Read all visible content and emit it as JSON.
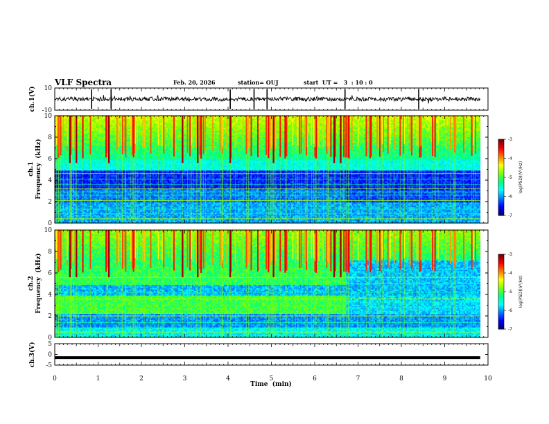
{
  "header": {
    "title": "VLF Spectra",
    "date": "Feb. 20, 2026",
    "station": "station= OUJ",
    "start_ut": "start  UT =   3  : 10 : 0"
  },
  "colors": {
    "accent": "#000000",
    "colormap": [
      "#00007f",
      "#0000ff",
      "#0080ff",
      "#00ffff",
      "#00ff80",
      "#80ff00",
      "#ffff00",
      "#ff8000",
      "#ff0000",
      "#7f0000"
    ]
  },
  "chart_data": [
    {
      "type": "line",
      "panel": "ch1-waveform",
      "ylabel": "ch.1(V)",
      "ylim": [
        -10,
        10
      ],
      "yticks": [
        {
          "v": 10,
          "label": "10"
        },
        {
          "v": -10,
          "label": "-10"
        }
      ],
      "baseline": 0,
      "spikes_at_min": [
        1.3,
        4.05,
        4.6,
        4.9,
        6.7,
        8.4,
        0.85
      ]
    },
    {
      "type": "heatmap",
      "panel": "ch1-spectrogram",
      "ylabel": "ch.1\nFrequency (kHz)",
      "ylabel_lines": [
        "ch.1",
        "Frequency  (kHz)"
      ],
      "ylim": [
        0,
        10
      ],
      "yticks": [
        {
          "v": 0,
          "label": "0"
        },
        {
          "v": 2,
          "label": "2"
        },
        {
          "v": 4,
          "label": "4"
        },
        {
          "v": 6,
          "label": "6"
        },
        {
          "v": 8,
          "label": "8"
        },
        {
          "v": 10,
          "label": "10"
        }
      ],
      "colorbar": {
        "label": "log(PSD)(V²/Hz)",
        "range": [
          -7,
          -3
        ],
        "ticks": [
          {
            "v": -3,
            "label": "-3"
          },
          {
            "v": -4,
            "label": "-4"
          },
          {
            "v": -5,
            "label": "-5"
          },
          {
            "v": -6,
            "label": "-6"
          },
          {
            "v": -7,
            "label": "-7"
          }
        ]
      },
      "change_time_min": 6.7
    },
    {
      "type": "heatmap",
      "panel": "ch2-spectrogram",
      "ylabel": "ch.2\nFrequency (kHz)",
      "ylabel_lines": [
        "ch.2",
        "Frequency  (kHz)"
      ],
      "ylim": [
        0,
        10
      ],
      "yticks": [
        {
          "v": 0,
          "label": "0"
        },
        {
          "v": 2,
          "label": "2"
        },
        {
          "v": 4,
          "label": "4"
        },
        {
          "v": 6,
          "label": "6"
        },
        {
          "v": 8,
          "label": "8"
        },
        {
          "v": 10,
          "label": "10"
        }
      ],
      "colorbar": {
        "label": "log(PSD)(V²/Hz)",
        "range": [
          -7,
          -3
        ],
        "ticks": [
          {
            "v": -3,
            "label": "-3"
          },
          {
            "v": -4,
            "label": "-4"
          },
          {
            "v": -5,
            "label": "-5"
          },
          {
            "v": -6,
            "label": "-6"
          },
          {
            "v": -7,
            "label": "-7"
          }
        ]
      },
      "change_time_min": 6.7
    },
    {
      "type": "line",
      "panel": "ch3-waveform",
      "ylabel": "ch.3(V)",
      "ylim": [
        -5,
        5
      ],
      "yticks": [
        {
          "v": 5,
          "label": "5"
        },
        {
          "v": 0,
          "label": "0"
        },
        {
          "v": -5,
          "label": "-5"
        }
      ],
      "level": -1.5
    }
  ],
  "x_axis": {
    "xlabel": "Time  (min)",
    "xlim": [
      0,
      10
    ],
    "data_end_min": 9.82,
    "ticks": [
      {
        "v": 0,
        "label": "0"
      },
      {
        "v": 1,
        "label": "1"
      },
      {
        "v": 2,
        "label": "2"
      },
      {
        "v": 3,
        "label": "3"
      },
      {
        "v": 4,
        "label": "4"
      },
      {
        "v": 5,
        "label": "5"
      },
      {
        "v": 6,
        "label": "6"
      },
      {
        "v": 7,
        "label": "7"
      },
      {
        "v": 8,
        "label": "8"
      },
      {
        "v": 9,
        "label": "9"
      },
      {
        "v": 10,
        "label": "10"
      }
    ]
  }
}
